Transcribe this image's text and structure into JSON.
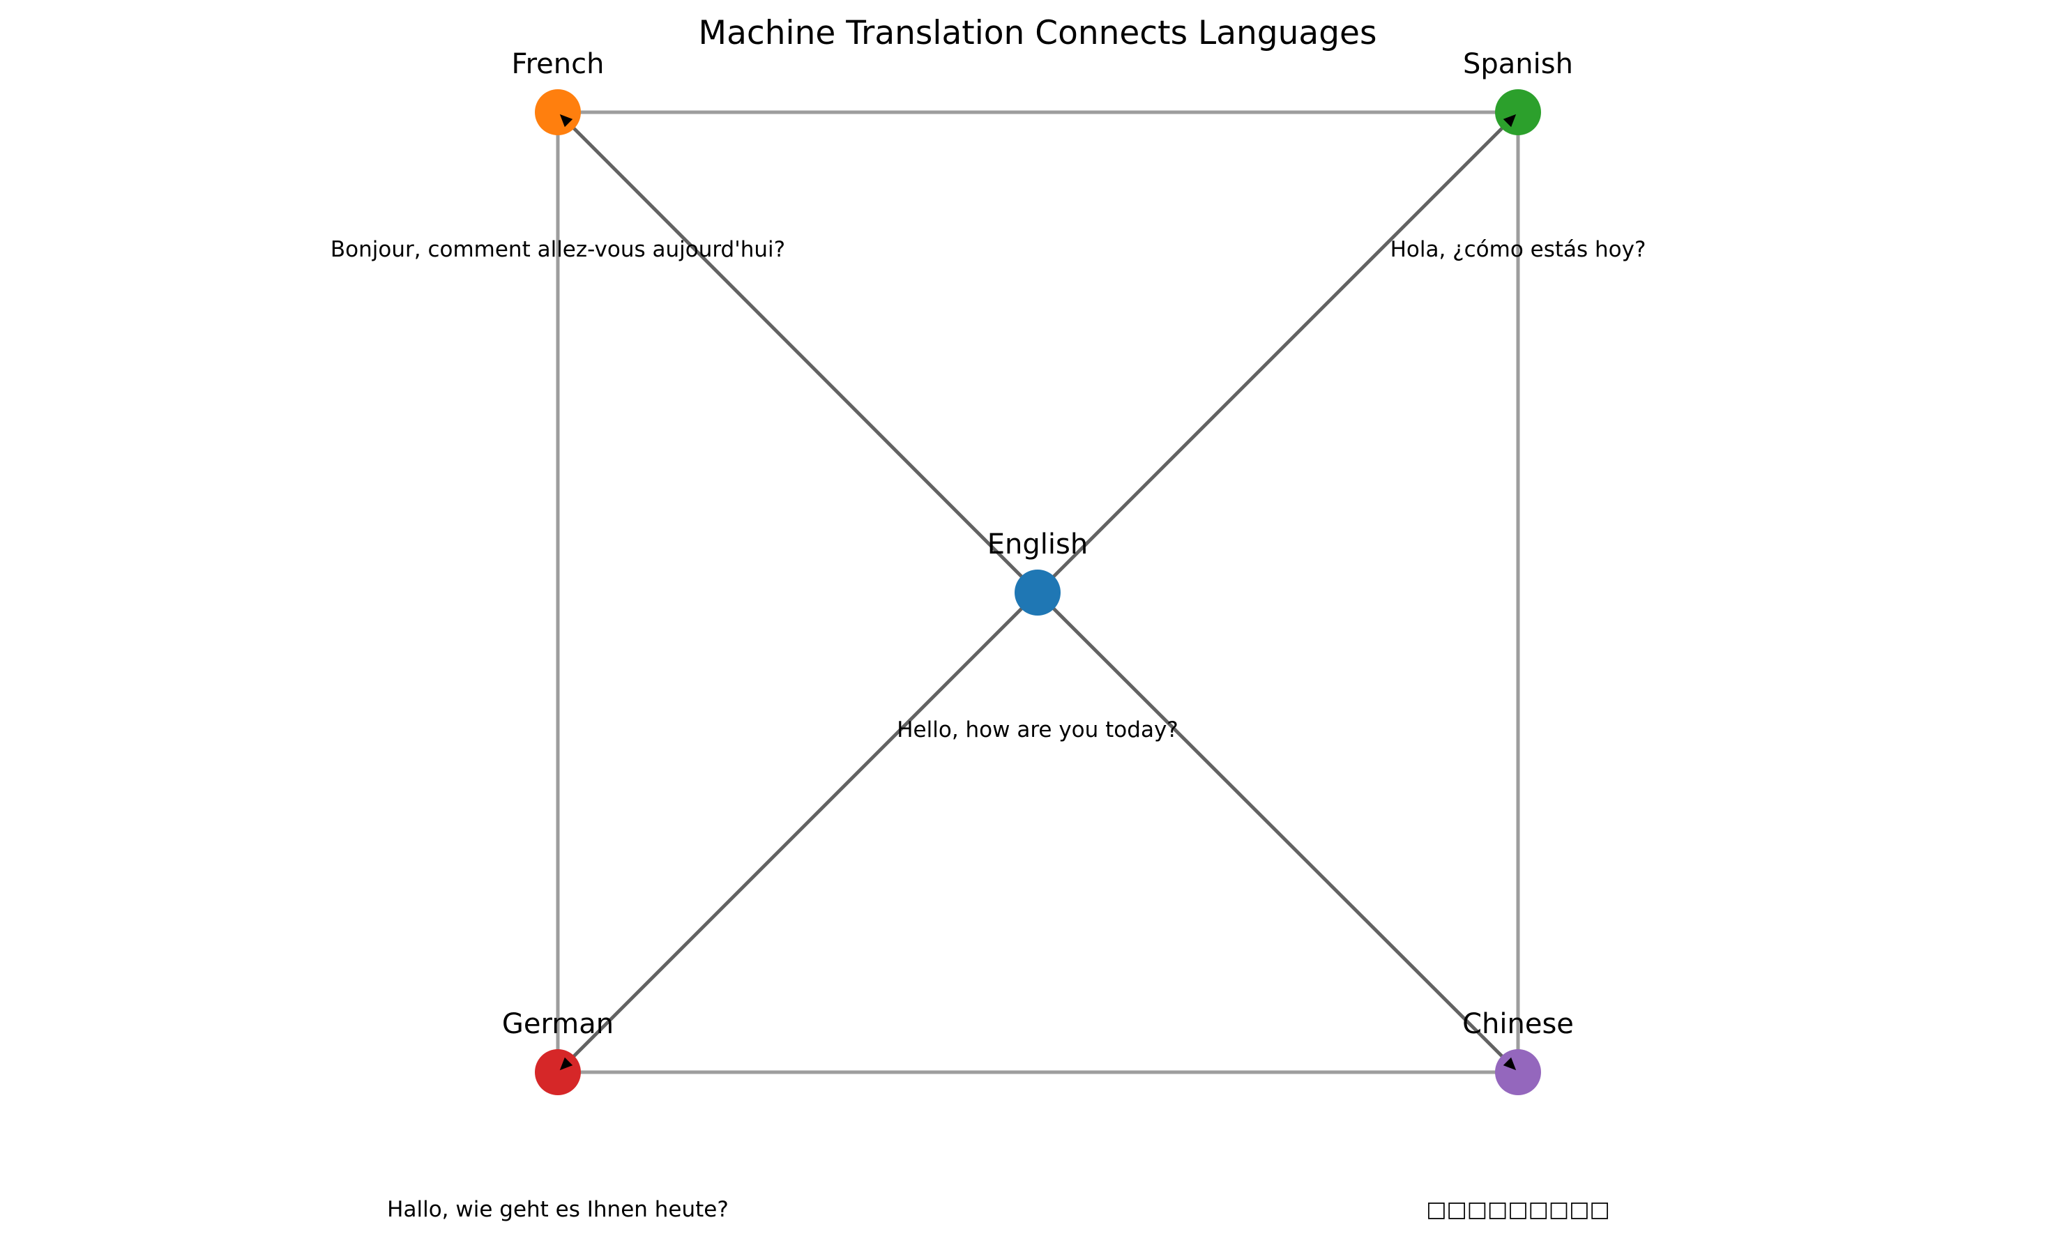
{
  "title": "Machine Translation Connects Languages",
  "nodes": {
    "english": {
      "label": "English",
      "phrase": "Hello, how are you today?",
      "color": "#1f77b4"
    },
    "french": {
      "label": "French",
      "phrase": "Bonjour, comment allez-vous aujourd'hui?",
      "color": "#ff7f0e"
    },
    "spanish": {
      "label": "Spanish",
      "phrase": "Hola, ¿cómo estás hoy?",
      "color": "#2ca02c"
    },
    "german": {
      "label": "German",
      "phrase": "Hallo, wie geht es Ihnen heute?",
      "color": "#d62728"
    },
    "chinese": {
      "label": "Chinese",
      "phrase": "□□□□□□□□□",
      "color": "#9467bd"
    }
  },
  "edges": {
    "direct": [
      {
        "from": "english",
        "to": "french"
      },
      {
        "from": "english",
        "to": "spanish"
      },
      {
        "from": "english",
        "to": "german"
      },
      {
        "from": "english",
        "to": "chinese"
      }
    ],
    "outer": [
      {
        "from": "french",
        "to": "spanish"
      },
      {
        "from": "french",
        "to": "german"
      },
      {
        "from": "spanish",
        "to": "chinese"
      },
      {
        "from": "german",
        "to": "chinese"
      }
    ]
  }
}
